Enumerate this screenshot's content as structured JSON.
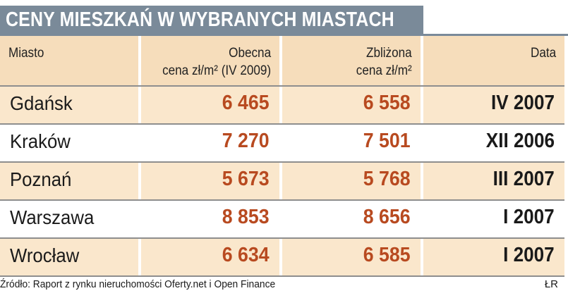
{
  "title": "CENY MIESZKAŃ W WYBRANYCH MIASTACH",
  "chart_data": {
    "type": "table",
    "columns": [
      "Miasto",
      "Obecna\ncena zł/m² (IV 2009)",
      "Zbliżona\ncena zł/m²",
      "Data"
    ],
    "rows": [
      {
        "city": "Gdańsk",
        "current": "6 465",
        "similar": "6 558",
        "date": "IV 2007"
      },
      {
        "city": "Kraków",
        "current": "7 270",
        "similar": "7 501",
        "date": "XII 2006"
      },
      {
        "city": "Poznań",
        "current": "5 673",
        "similar": "5 768",
        "date": "III 2007"
      },
      {
        "city": "Warszawa",
        "current": "8 853",
        "similar": "8 656",
        "date": "I 2007"
      },
      {
        "city": "Wrocław",
        "current": "6 634",
        "similar": "6 585",
        "date": "I 2007"
      }
    ]
  },
  "source": "Źródło: Raport z rynku nieruchomości Oferty.net i Open Finance",
  "credit": "ŁR",
  "colors": {
    "title_bg": "#7a8a99",
    "header_bg": "#f6ddbb",
    "row_alt_bg": "#fae7cc",
    "value_color": "#b84a20"
  }
}
